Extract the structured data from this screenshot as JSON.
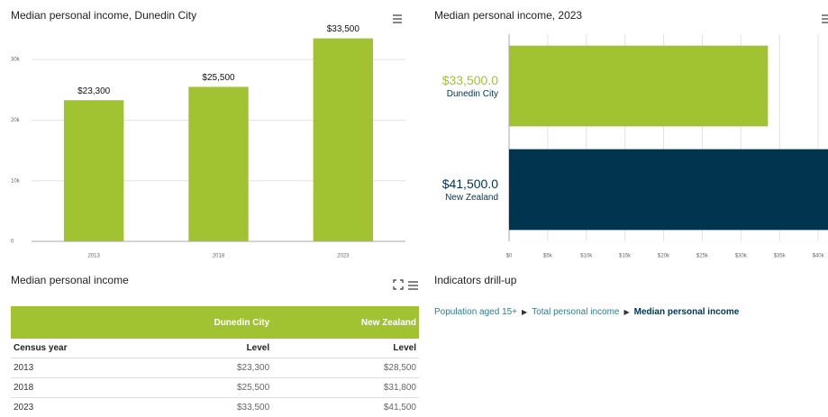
{
  "chart_data": [
    {
      "type": "bar",
      "title": "Median personal income, Dunedin City",
      "categories": [
        "2013",
        "2018",
        "2023"
      ],
      "values": [
        23300,
        25500,
        33500
      ],
      "value_labels": [
        "$23,300",
        "$25,500",
        "$33,500"
      ],
      "color": "#a1c332",
      "ylim": [
        0,
        35000
      ],
      "yticks": [
        0,
        {
          "value": 10000,
          "label": "10k"
        },
        {
          "value": 20000,
          "label": "20k"
        },
        {
          "value": 30000,
          "label": "30k"
        }
      ],
      "grid": true
    },
    {
      "type": "hbar",
      "title": "Median personal income, 2023",
      "categories": [
        "Dunedin City",
        "New Zealand"
      ],
      "values": [
        33500,
        41500
      ],
      "value_labels": [
        "$33,500.0",
        "$41,500.0"
      ],
      "colors": [
        "#a1c332",
        "#00344f"
      ],
      "xlim": [
        0,
        45000
      ],
      "xticks": [
        {
          "value": 0,
          "label": "$0"
        },
        {
          "value": 5000,
          "label": "$5k"
        },
        {
          "value": 10000,
          "label": "$10k"
        },
        {
          "value": 15000,
          "label": "$15k"
        },
        {
          "value": 20000,
          "label": "$20k"
        },
        {
          "value": 25000,
          "label": "$25k"
        },
        {
          "value": 30000,
          "label": "$30k"
        },
        {
          "value": 35000,
          "label": "$35k"
        },
        {
          "value": 40000,
          "label": "$40k"
        }
      ],
      "grid": true
    }
  ],
  "table": {
    "title": "Median personal income",
    "header": [
      "Dunedin City",
      "New Zealand"
    ],
    "subheader": [
      "Census year",
      "Level",
      "Level"
    ],
    "rows": [
      [
        "2013",
        "$23,300",
        "$28,500"
      ],
      [
        "2018",
        "$25,500",
        "$31,800"
      ],
      [
        "2023",
        "$33,500",
        "$41,500"
      ]
    ]
  },
  "drillup": {
    "title": "Indicators drill-up",
    "path": [
      "Population aged 15+",
      "Total personal income",
      "Median personal income"
    ]
  }
}
